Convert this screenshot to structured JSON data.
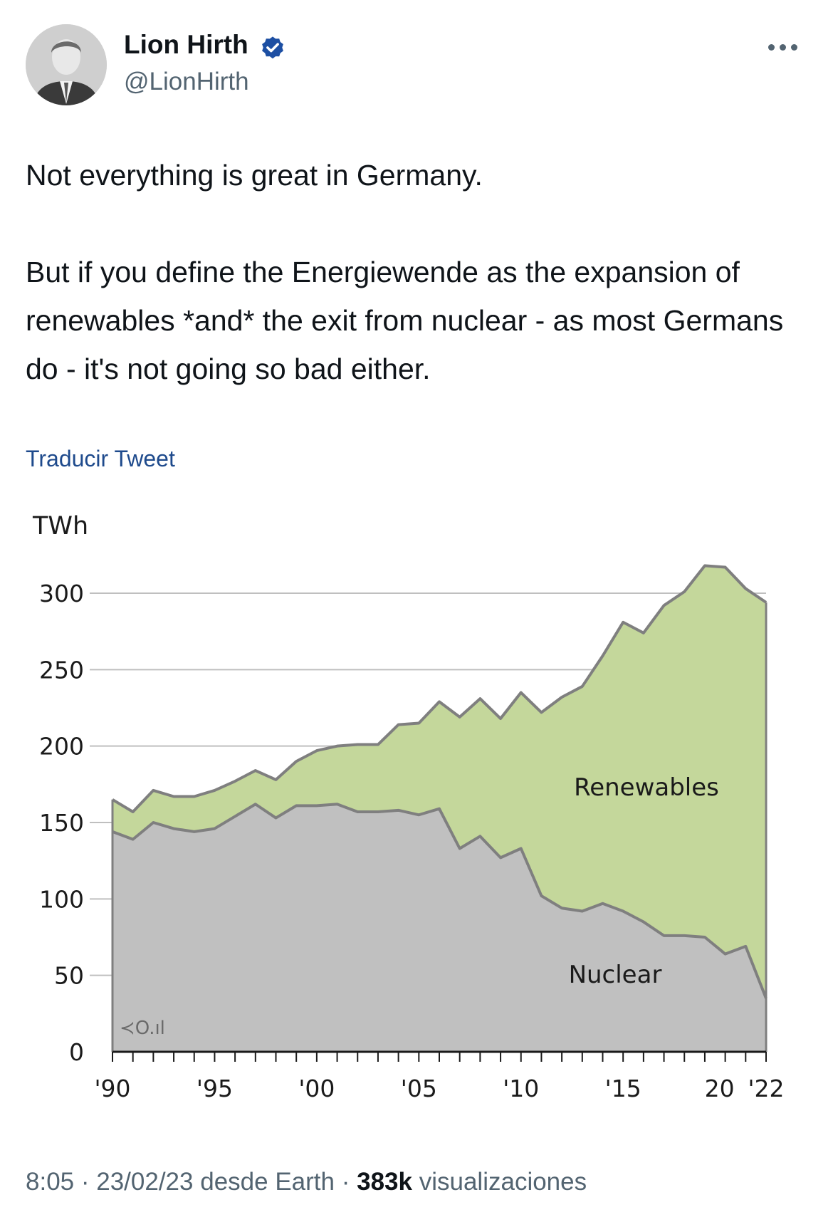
{
  "author": {
    "name": "Lion Hirth",
    "handle": "@LionHirth",
    "verified": true,
    "avatar_icon": "profile-photo"
  },
  "tweet": {
    "text": "Not everything is great in Germany.\n\nBut if you define the Energiewende as the expansion of renewables *and* the exit from nuclear - as most Germans do - it's not going so bad either.",
    "translate_label": "Traducir Tweet"
  },
  "footer": {
    "time": "8:05",
    "date": "23/02/23",
    "source": "desde Earth",
    "separator": "·",
    "views_count": "383k",
    "views_label": "visualizaciones"
  },
  "colors": {
    "renewables": "#c4d79b",
    "nuclear": "#c0c0c0",
    "outline": "#7f7f7f",
    "link": "#1e4a8c"
  },
  "chart_data": {
    "type": "area",
    "stacked": true,
    "ylabel": "TWh",
    "ylim": [
      0,
      300
    ],
    "yticks": [
      0,
      50,
      100,
      150,
      200,
      250,
      300
    ],
    "x": [
      1990,
      1991,
      1992,
      1993,
      1994,
      1995,
      1996,
      1997,
      1998,
      1999,
      2000,
      2001,
      2002,
      2003,
      2004,
      2005,
      2006,
      2007,
      2008,
      2009,
      2010,
      2011,
      2012,
      2013,
      2014,
      2015,
      2016,
      2017,
      2018,
      2019,
      2020,
      2021,
      2022
    ],
    "xtick_labels": [
      {
        "x": 1990,
        "label": "'90"
      },
      {
        "x": 1995,
        "label": "'95"
      },
      {
        "x": 2000,
        "label": "'00"
      },
      {
        "x": 2005,
        "label": "'05"
      },
      {
        "x": 2010,
        "label": "'10"
      },
      {
        "x": 2015,
        "label": "'15"
      },
      {
        "x": 2020,
        "label": "20"
      },
      {
        "x": 2022,
        "label": "'22"
      }
    ],
    "grid": "horizontal",
    "series": [
      {
        "name": "Nuclear",
        "values": [
          144,
          139,
          150,
          146,
          144,
          146,
          154,
          162,
          153,
          161,
          161,
          162,
          157,
          157,
          158,
          155,
          159,
          133,
          141,
          127,
          133,
          102,
          94,
          92,
          97,
          92,
          85,
          76,
          76,
          75,
          64,
          69,
          35
        ]
      },
      {
        "name": "Renewables",
        "values": [
          21,
          18,
          21,
          21,
          23,
          25,
          23,
          22,
          25,
          29,
          36,
          38,
          44,
          44,
          56,
          60,
          70,
          86,
          90,
          91,
          102,
          120,
          138,
          147,
          162,
          189,
          189,
          216,
          225,
          243,
          253,
          234,
          259
        ]
      }
    ],
    "watermark": "≺O.ıl"
  }
}
